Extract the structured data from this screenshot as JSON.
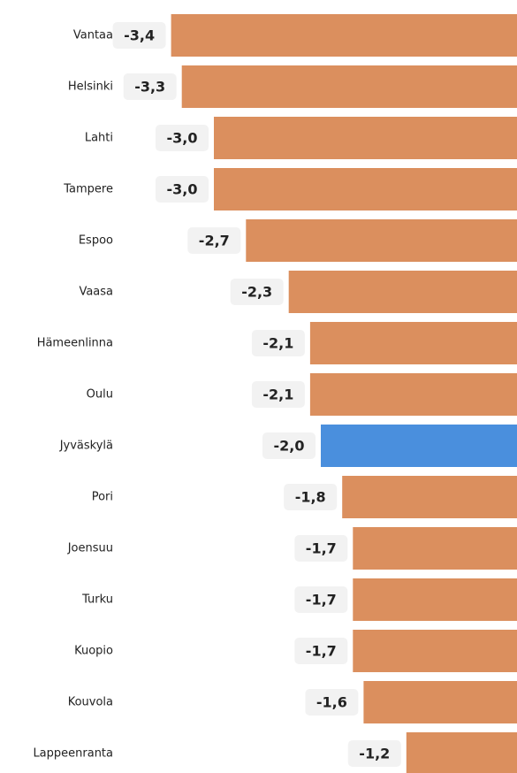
{
  "chart_data": {
    "type": "hbar",
    "categories": [
      "Vantaa",
      "Helsinki",
      "Lahti",
      "Tampere",
      "Espoo",
      "Vaasa",
      "Hämeenlinna",
      "Oulu",
      "Jyväskylä",
      "Pori",
      "Joensuu",
      "Turku",
      "Kuopio",
      "Kouvola",
      "Lappeenranta"
    ],
    "values": [
      -3.4,
      -3.3,
      -3.0,
      -3.0,
      -2.7,
      -2.3,
      -2.1,
      -2.1,
      -2.0,
      -1.8,
      -1.7,
      -1.7,
      -1.7,
      -1.6,
      -1.2
    ],
    "value_labels": [
      "-3,4",
      "-3,3",
      "-3,0",
      "-3,0",
      "-2,7",
      "-2,3",
      "-2,1",
      "-2,1",
      "-2,0",
      "-1,8",
      "-1,7",
      "-1,7",
      "-1,7",
      "-1,6",
      "-1,2"
    ],
    "colors": [
      "#db8f5e",
      "#db8f5e",
      "#db8f5e",
      "#db8f5e",
      "#db8f5e",
      "#db8f5e",
      "#db8f5e",
      "#db8f5e",
      "#4a8fdd",
      "#db8f5e",
      "#db8f5e",
      "#db8f5e",
      "#db8f5e",
      "#db8f5e",
      "#db8f5e"
    ]
  }
}
